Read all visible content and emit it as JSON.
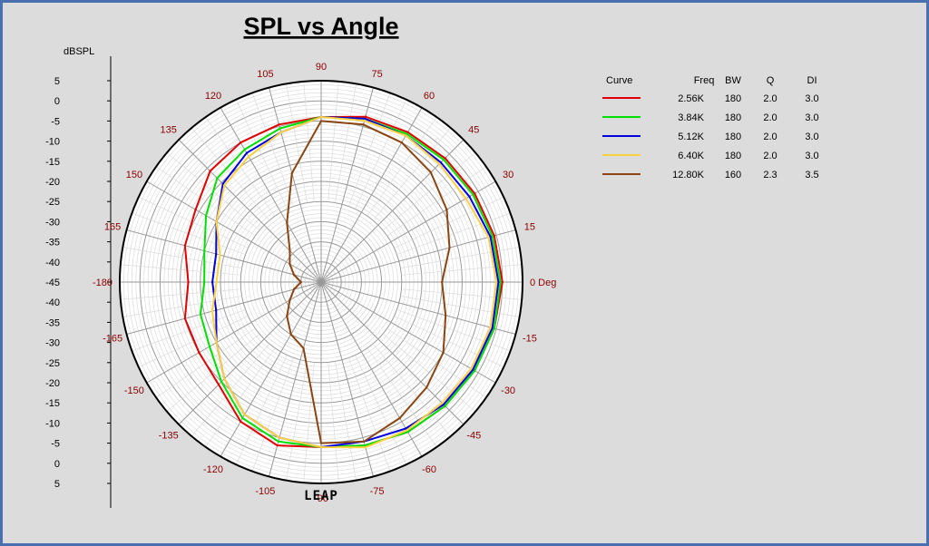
{
  "chart_data": {
    "type": "polar-line",
    "title": "SPL vs Angle",
    "rlabel": "dBSPL",
    "rlim": [
      -45,
      5
    ],
    "r_ticks": [
      "5",
      "0",
      "-5",
      "-10",
      "-15",
      "-20",
      "-25",
      "-30",
      "-35",
      "-40",
      "-45"
    ],
    "angle_labels": [
      {
        "deg": 90,
        "text": "90"
      },
      {
        "deg": 75,
        "text": "75"
      },
      {
        "deg": 60,
        "text": "60"
      },
      {
        "deg": 45,
        "text": "45"
      },
      {
        "deg": 30,
        "text": "30"
      },
      {
        "deg": 15,
        "text": "15"
      },
      {
        "deg": 0,
        "text": "0 Deg"
      },
      {
        "deg": -15,
        "text": "-15"
      },
      {
        "deg": -30,
        "text": "-30"
      },
      {
        "deg": -45,
        "text": "-45"
      },
      {
        "deg": -60,
        "text": "-60"
      },
      {
        "deg": -75,
        "text": "-75"
      },
      {
        "deg": -90,
        "text": "-90"
      },
      {
        "deg": -105,
        "text": "-105"
      },
      {
        "deg": -120,
        "text": "-120"
      },
      {
        "deg": -135,
        "text": "-135"
      },
      {
        "deg": -150,
        "text": "-150"
      },
      {
        "deg": -165,
        "text": "-165"
      },
      {
        "deg": 180,
        "text": "-180"
      },
      {
        "deg": 165,
        "text": "165"
      },
      {
        "deg": 150,
        "text": "150"
      },
      {
        "deg": 135,
        "text": "135"
      },
      {
        "deg": 120,
        "text": "120"
      },
      {
        "deg": 105,
        "text": "105"
      }
    ],
    "watermark": "LEAP",
    "angles": [
      0,
      15,
      30,
      45,
      60,
      75,
      90,
      105,
      120,
      135,
      150,
      165,
      180,
      -165,
      -150,
      -135,
      -120,
      -105,
      -90,
      -75,
      -60,
      -45,
      -30,
      -15
    ],
    "legend": {
      "headers": [
        "Curve",
        "Freq",
        "BW",
        "Q",
        "DI"
      ],
      "rows": [
        {
          "color": "#e00000",
          "freq": "2.56K",
          "bw": "180",
          "q": "2.0",
          "di": "3.0"
        },
        {
          "color": "#00e000",
          "freq": "3.84K",
          "bw": "180",
          "q": "2.0",
          "di": "3.0"
        },
        {
          "color": "#0000e0",
          "freq": "5.12K",
          "bw": "180",
          "q": "2.0",
          "di": "3.0"
        },
        {
          "color": "#ffd040",
          "freq": "6.40K",
          "bw": "180",
          "q": "2.0",
          "di": "3.0"
        },
        {
          "color": "#8b4513",
          "freq": "12.80K",
          "bw": "160",
          "q": "2.3",
          "di": "3.5"
        }
      ]
    },
    "series": [
      {
        "color": "#e00000",
        "values": [
          0,
          -0.5,
          -1,
          -1.5,
          -2,
          -2.5,
          -4,
          -4.5,
          -5,
          -6,
          -9,
          -10,
          -12,
          -10,
          -10,
          -9,
          -5,
          -3,
          -4,
          -3,
          -2,
          -1.5,
          -1,
          -0.5
        ]
      },
      {
        "color": "#00e000",
        "values": [
          -0.5,
          -1,
          -1.5,
          -2,
          -2.5,
          -3,
          -4,
          -5.5,
          -7,
          -8.5,
          -12,
          -15,
          -16,
          -14,
          -13,
          -10,
          -6,
          -4,
          -4,
          -3,
          -2,
          -1.5,
          -1,
          -0.5
        ]
      },
      {
        "color": "#0000e0",
        "values": [
          -1,
          -1.5,
          -2.5,
          -3,
          -3,
          -3,
          -4,
          -6.5,
          -8,
          -10.5,
          -15,
          -18,
          -18,
          -18,
          -15,
          -11,
          -7,
          -5,
          -4,
          -4,
          -3,
          -2,
          -1.5,
          -1
        ]
      },
      {
        "color": "#ffd040",
        "values": [
          -1.5,
          -2,
          -3.5,
          -3.5,
          -3,
          -3.5,
          -4,
          -6.5,
          -9,
          -11,
          -15,
          -19,
          -19,
          -17,
          -15,
          -11,
          -7,
          -5,
          -4,
          -2.5,
          -2.5,
          -2.5,
          -2,
          -1.5
        ]
      },
      {
        "color": "#8b4513",
        "values": [
          -15,
          -12,
          -9,
          -6.5,
          -5,
          -4.5,
          -5,
          -17,
          -28,
          -34,
          -36,
          -38,
          -40,
          -38,
          -36,
          -33,
          -30,
          -28,
          -5,
          -4,
          -6,
          -8,
          -10,
          -13
        ]
      }
    ]
  }
}
